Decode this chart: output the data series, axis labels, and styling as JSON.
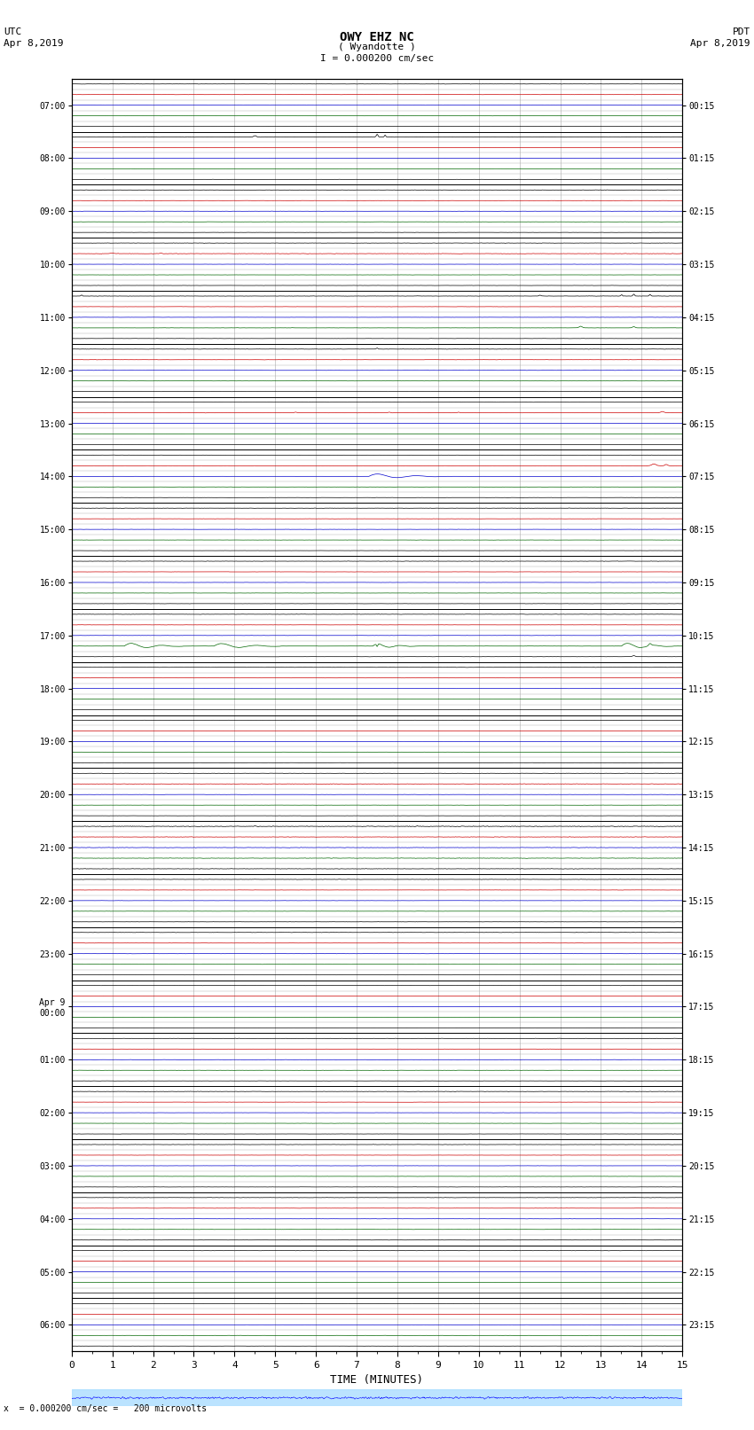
{
  "title_line1": "OWY EHZ NC",
  "title_line2": "( Wyandotte )",
  "scale_text": "I = 0.000200 cm/sec",
  "footer_text": "x  = 0.000200 cm/sec =   200 microvolts",
  "xlabel": "TIME (MINUTES)",
  "left_ytick_labels": [
    "07:00",
    "08:00",
    "09:00",
    "10:00",
    "11:00",
    "12:00",
    "13:00",
    "14:00",
    "15:00",
    "16:00",
    "17:00",
    "18:00",
    "19:00",
    "20:00",
    "21:00",
    "22:00",
    "23:00",
    "Apr 9\n00:00",
    "01:00",
    "02:00",
    "03:00",
    "04:00",
    "05:00",
    "06:00"
  ],
  "right_ytick_labels": [
    "00:15",
    "01:15",
    "02:15",
    "03:15",
    "04:15",
    "05:15",
    "06:15",
    "07:15",
    "08:15",
    "09:15",
    "10:15",
    "11:15",
    "12:15",
    "13:15",
    "14:15",
    "15:15",
    "16:15",
    "17:15",
    "18:15",
    "19:15",
    "20:15",
    "21:15",
    "22:15",
    "23:15"
  ],
  "n_hours": 24,
  "n_subrows": 5,
  "n_cols": 15,
  "xlim": [
    0,
    15
  ],
  "bg_color": "#ffffff",
  "major_grid_color": "#000000",
  "minor_grid_color": "#aaaaaa",
  "colors": {
    "black": "#000000",
    "red": "#cc0000",
    "blue": "#0000cc",
    "green": "#006600"
  },
  "subrow_color_pattern": [
    "black",
    "red",
    "blue",
    "green",
    "black"
  ],
  "subrow_amp": [
    0.012,
    0.008,
    0.008,
    0.008,
    0.008
  ]
}
